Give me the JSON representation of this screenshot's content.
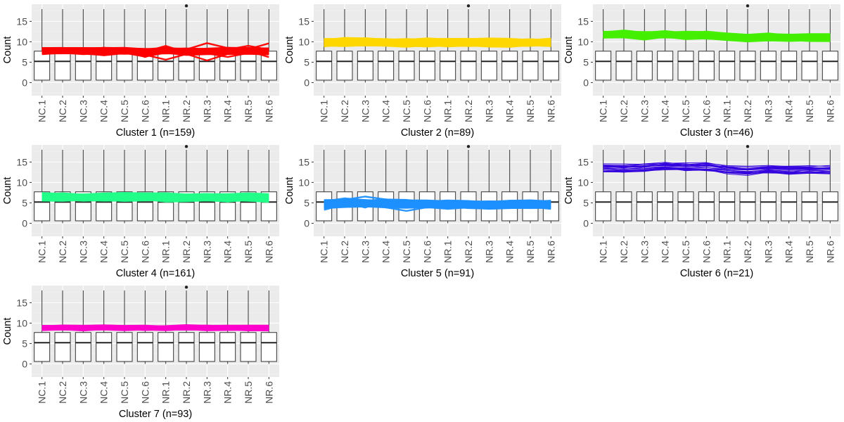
{
  "figure": {
    "layout": "7 faceted box plots with overlaid cluster profile lines, 3 columns"
  },
  "chart_data": [
    {
      "type": "box",
      "title": "Cluster 1 (n=159)",
      "xlabel": "Cluster 1 (n=159)",
      "ylabel": "Count",
      "categories": [
        "NC.1",
        "NC.2",
        "NC.3",
        "NC.4",
        "NC.5",
        "NC.6",
        "NR.1",
        "NR.2",
        "NR.3",
        "NR.4",
        "NR.5",
        "NR.6"
      ],
      "yticks": [
        0,
        5,
        10,
        15
      ],
      "ylim": [
        -3.2,
        19.2
      ],
      "boxes": {
        "min": 0,
        "q1": 0.6,
        "median": 5.2,
        "q3": 7.7,
        "max": 18.0,
        "outlier_category": "NR.2",
        "outlier": 18.8
      },
      "profile_color": "#ff0000",
      "profile": {
        "center": [
          7.8,
          7.9,
          7.7,
          7.8,
          7.7,
          7.6,
          7.8,
          7.6,
          7.7,
          7.8,
          7.8,
          7.7
        ],
        "half_width": 0.8,
        "n_lines": 159
      },
      "grid": true
    },
    {
      "type": "box",
      "title": "Cluster 2 (n=89)",
      "xlabel": "Cluster 2 (n=89)",
      "ylabel": "Count",
      "categories": [
        "NC.1",
        "NC.2",
        "NC.3",
        "NC.4",
        "NC.5",
        "NC.6",
        "NR.1",
        "NR.2",
        "NR.3",
        "NR.4",
        "NR.5",
        "NR.6"
      ],
      "yticks": [
        0,
        5,
        10,
        15
      ],
      "ylim": [
        -3.2,
        19.2
      ],
      "boxes": {
        "min": 0,
        "q1": 0.6,
        "median": 5.2,
        "q3": 7.7,
        "max": 18.0,
        "outlier_category": "NR.2",
        "outlier": 18.8
      },
      "profile_color": "#ffd700",
      "profile": {
        "center": [
          9.8,
          10.0,
          9.9,
          9.9,
          9.8,
          9.8,
          9.9,
          9.9,
          9.8,
          9.8,
          9.8,
          9.8
        ],
        "half_width": 1.0,
        "n_lines": 89
      },
      "grid": true
    },
    {
      "type": "box",
      "title": "Cluster 3 (n=46)",
      "xlabel": "Cluster 3 (n=46)",
      "ylabel": "Count",
      "categories": [
        "NC.1",
        "NC.2",
        "NC.3",
        "NC.4",
        "NC.5",
        "NC.6",
        "NR.1",
        "NR.2",
        "NR.3",
        "NR.4",
        "NR.5",
        "NR.6"
      ],
      "yticks": [
        0,
        5,
        10,
        15
      ],
      "ylim": [
        -3.2,
        19.2
      ],
      "boxes": {
        "min": 0,
        "q1": 0.6,
        "median": 5.2,
        "q3": 7.7,
        "max": 18.0,
        "outlier_category": "NR.2",
        "outlier": 18.8
      },
      "profile_color": "#44ee00",
      "profile": {
        "center": [
          11.8,
          11.9,
          11.5,
          11.8,
          11.6,
          11.6,
          11.2,
          10.9,
          11.2,
          11.0,
          11.0,
          11.0
        ],
        "half_width": 0.9,
        "n_lines": 46
      },
      "grid": true
    },
    {
      "type": "box",
      "title": "Cluster 4 (n=161)",
      "xlabel": "Cluster 4 (n=161)",
      "ylabel": "Count",
      "categories": [
        "NC.1",
        "NC.2",
        "NC.3",
        "NC.4",
        "NC.5",
        "NC.6",
        "NR.1",
        "NR.2",
        "NR.3",
        "NR.4",
        "NR.5",
        "NR.6"
      ],
      "yticks": [
        0,
        5,
        10,
        15
      ],
      "ylim": [
        -3.2,
        19.2
      ],
      "boxes": {
        "min": 0,
        "q1": 0.6,
        "median": 5.2,
        "q3": 7.7,
        "max": 18.0,
        "outlier_category": "NR.2",
        "outlier": 18.8
      },
      "profile_color": "#22ff88",
      "profile": {
        "center": [
          6.4,
          6.5,
          6.3,
          6.5,
          6.4,
          6.5,
          6.3,
          6.2,
          6.3,
          6.2,
          6.3,
          6.2
        ],
        "half_width": 1.0,
        "n_lines": 161
      },
      "grid": true
    },
    {
      "type": "box",
      "title": "Cluster 5 (n=91)",
      "xlabel": "Cluster 5 (n=91)",
      "ylabel": "Count",
      "categories": [
        "NC.1",
        "NC.2",
        "NC.3",
        "NC.4",
        "NC.5",
        "NC.6",
        "NR.1",
        "NR.2",
        "NR.3",
        "NR.4",
        "NR.5",
        "NR.6"
      ],
      "yticks": [
        0,
        5,
        10,
        15
      ],
      "ylim": [
        -3.2,
        19.2
      ],
      "boxes": {
        "min": 0,
        "q1": 0.6,
        "median": 5.2,
        "q3": 7.7,
        "max": 18.0,
        "outlier_category": "NR.2",
        "outlier": 18.8
      },
      "profile_color": "#1e90ff",
      "profile": {
        "center": [
          4.7,
          4.9,
          4.9,
          4.8,
          4.7,
          4.6,
          4.6,
          4.5,
          4.5,
          4.6,
          4.6,
          4.5
        ],
        "half_width": 1.0,
        "n_lines": 91
      },
      "grid": true
    },
    {
      "type": "box",
      "title": "Cluster 6 (n=21)",
      "xlabel": "Cluster 6 (n=21)",
      "ylabel": "Count",
      "categories": [
        "NC.1",
        "NC.2",
        "NC.3",
        "NC.4",
        "NC.5",
        "NC.6",
        "NR.1",
        "NR.2",
        "NR.3",
        "NR.4",
        "NR.5",
        "NR.6"
      ],
      "yticks": [
        0,
        5,
        10,
        15
      ],
      "ylim": [
        -3.2,
        19.2
      ],
      "boxes": {
        "min": 0,
        "q1": 0.6,
        "median": 5.2,
        "q3": 7.7,
        "max": 18.0,
        "outlier_category": "NR.2",
        "outlier": 18.8
      },
      "profile_color": "#3300dd",
      "profile": {
        "center": [
          13.5,
          13.4,
          13.6,
          14.0,
          13.7,
          13.8,
          13.2,
          12.8,
          13.2,
          13.0,
          13.1,
          13.0
        ],
        "half_width": 1.1,
        "n_lines": 21
      },
      "grid": true
    },
    {
      "type": "box",
      "title": "Cluster 7 (n=93)",
      "xlabel": "Cluster 7 (n=93)",
      "ylabel": "Count",
      "categories": [
        "NC.1",
        "NC.2",
        "NC.3",
        "NC.4",
        "NC.5",
        "NC.6",
        "NR.1",
        "NR.2",
        "NR.3",
        "NR.4",
        "NR.5",
        "NR.6"
      ],
      "yticks": [
        0,
        5,
        10,
        15
      ],
      "ylim": [
        -3.2,
        19.2
      ],
      "boxes": {
        "min": 0,
        "q1": 0.6,
        "median": 5.2,
        "q3": 7.7,
        "max": 18.0,
        "outlier_category": "NR.2",
        "outlier": 18.8
      },
      "profile_color": "#ff00cc",
      "profile": {
        "center": [
          8.8,
          8.9,
          8.8,
          9.0,
          8.8,
          8.8,
          8.8,
          8.9,
          8.8,
          8.8,
          8.8,
          8.8
        ],
        "half_width": 0.6,
        "n_lines": 93
      },
      "grid": true
    }
  ]
}
